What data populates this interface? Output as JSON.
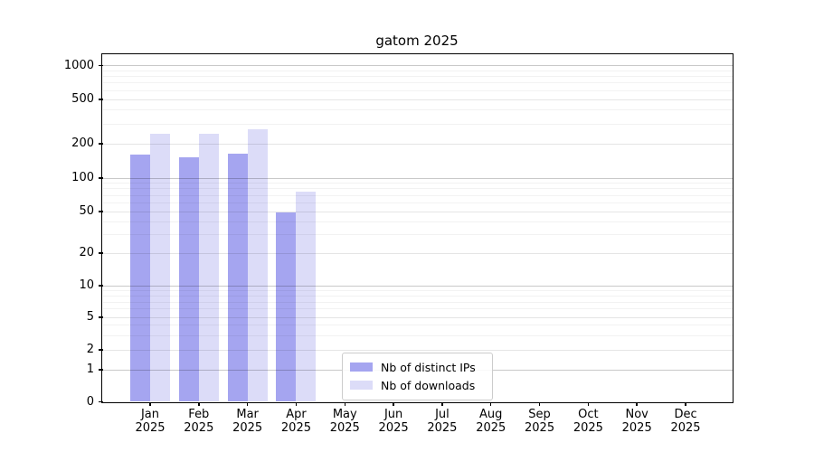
{
  "chart_data": {
    "type": "bar",
    "title": "gatom 2025",
    "categories": [
      "Jan",
      "Feb",
      "Mar",
      "Apr",
      "May",
      "Jun",
      "Jul",
      "Aug",
      "Sep",
      "Oct",
      "Nov",
      "Dec"
    ],
    "x_year_label": "2025",
    "series": [
      {
        "name": "Nb of distinct IPs",
        "color": "#a5a5f0",
        "values": [
          162,
          151,
          164,
          49,
          null,
          null,
          null,
          null,
          null,
          null,
          null,
          null
        ]
      },
      {
        "name": "Nb of downloads",
        "color": "#dcdcf8",
        "values": [
          246,
          244,
          268,
          75,
          null,
          null,
          null,
          null,
          null,
          null,
          null,
          null
        ]
      }
    ],
    "y_ticks": [
      0,
      1,
      2,
      5,
      10,
      20,
      50,
      100,
      200,
      500,
      1000
    ],
    "ylim": [
      0,
      1000
    ],
    "yscale": "log-like",
    "grid": true,
    "legend_position": "lower-center-inside"
  }
}
